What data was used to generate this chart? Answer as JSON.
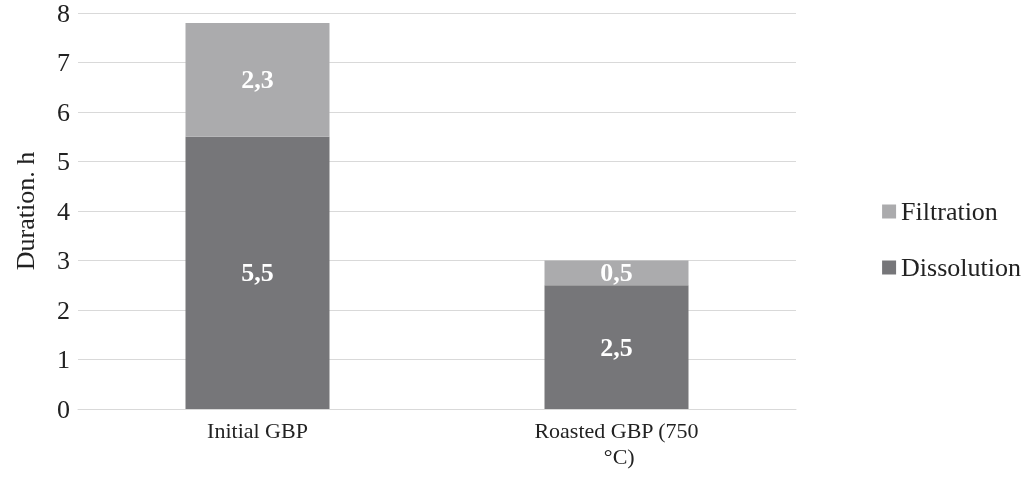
{
  "chart_data": {
    "type": "bar",
    "stacked": true,
    "ylabel": "Duration. h",
    "categories": [
      "Initial GBP",
      "Roasted GBP (750 °C)"
    ],
    "series": [
      {
        "name": "Dissolution",
        "color": "#767679",
        "values": [
          5.5,
          2.5
        ],
        "value_labels": [
          "5,5",
          "2,5"
        ]
      },
      {
        "name": "Filtration",
        "color": "#ababad",
        "values": [
          2.3,
          0.5
        ],
        "value_labels": [
          "2,3",
          "0,5"
        ]
      }
    ],
    "ylim": [
      0,
      8
    ],
    "yticks": [
      0,
      1,
      2,
      3,
      4,
      5,
      6,
      7,
      8
    ],
    "grid": "y",
    "legend": "right"
  }
}
